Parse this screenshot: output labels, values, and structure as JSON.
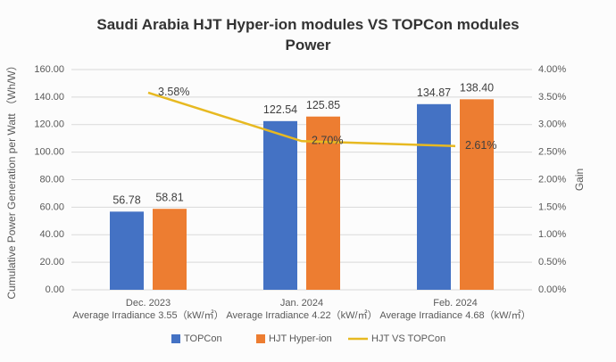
{
  "chart_data": {
    "type": "bar-line",
    "title": "Saudi Arabia HJT Hyper-ion modules VS TOPCon modules Power",
    "categories": [
      [
        "Dec. 2023",
        "Average Irradiance 3.55（kW/㎡）"
      ],
      [
        "Jan. 2024",
        "Average Irradiance 4.22（kW/㎡）"
      ],
      [
        "Feb. 2024",
        "Average Irradiance 4.68（kW/㎡）"
      ]
    ],
    "y_label": "Cumulative Power Generation per Watt （Wh/W）",
    "y2_label": "Gain",
    "ylim": [
      0,
      160
    ],
    "yticks": [
      {
        "value": 0,
        "label": "0.00"
      },
      {
        "value": 20,
        "label": "20.00"
      },
      {
        "value": 40,
        "label": "40.00"
      },
      {
        "value": 60,
        "label": "60.00"
      },
      {
        "value": 80,
        "label": "80.00"
      },
      {
        "value": 100,
        "label": "100.00"
      },
      {
        "value": 120,
        "label": "120.00"
      },
      {
        "value": 140,
        "label": "140.00"
      },
      {
        "value": 160,
        "label": "160.00"
      }
    ],
    "y2lim": [
      0,
      4
    ],
    "y2ticks": [
      {
        "value": 0,
        "label": "0.00%"
      },
      {
        "value": 0.5,
        "label": "0.50%"
      },
      {
        "value": 1,
        "label": "1.00%"
      },
      {
        "value": 1.5,
        "label": "1.50%"
      },
      {
        "value": 2,
        "label": "2.00%"
      },
      {
        "value": 2.5,
        "label": "2.50%"
      },
      {
        "value": 3,
        "label": "3.00%"
      },
      {
        "value": 3.5,
        "label": "3.50%"
      },
      {
        "value": 4,
        "label": "4.00%"
      }
    ],
    "grid": true,
    "legend": "bottom",
    "series": [
      {
        "name": "TOPCon",
        "type": "bar",
        "color": "#4472c4",
        "values": [
          56.78,
          122.54,
          134.87
        ],
        "value_labels": [
          "56.78",
          "122.54",
          "134.87"
        ]
      },
      {
        "name": "HJT Hyper-ion",
        "type": "bar",
        "color": "#ed7d31",
        "values": [
          58.81,
          125.85,
          138.4
        ],
        "value_labels": [
          "58.81",
          "125.85",
          "138.40"
        ]
      },
      {
        "name": "HJT VS TOPCon",
        "type": "line",
        "axis": "y2",
        "color": "#e7b921",
        "values": [
          3.58,
          2.7,
          2.61
        ],
        "value_labels": [
          "3.58%",
          "2.70%",
          "2.61%"
        ]
      }
    ]
  }
}
